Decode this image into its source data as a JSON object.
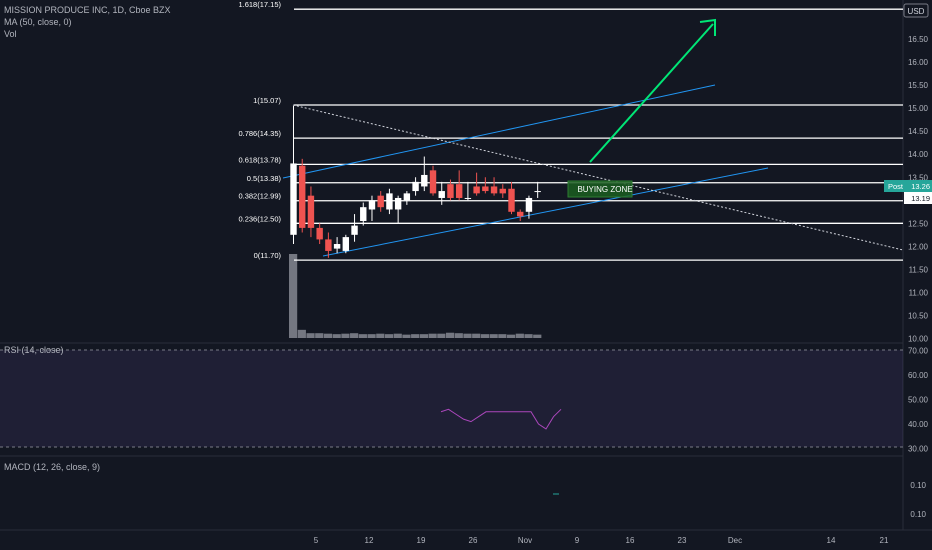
{
  "header": {
    "symbol_line": "MISSION PRODUCE INC, 1D, Cboe BZX",
    "ma_line": "MA (50, close, 0)",
    "vol_line": "Vol"
  },
  "price_axis": {
    "currency": "USD",
    "ticks": [
      "16.50",
      "16.00",
      "15.50",
      "15.00",
      "14.50",
      "14.00",
      "13.50",
      "13.00",
      "12.50",
      "12.00",
      "11.50",
      "11.00",
      "10.50",
      "10.00"
    ],
    "last_label_prefix": "Post",
    "last_price": "13.26",
    "close_price": "13.19"
  },
  "rsi_panel": {
    "title": "RSI (14, close)",
    "ticks": [
      "70.00",
      "60.00",
      "50.00",
      "40.00",
      "30.00"
    ]
  },
  "macd_panel": {
    "title": "MACD (12, 26, close, 9)",
    "ticks": [
      "0.10",
      "0.10"
    ]
  },
  "time_axis": {
    "labels": [
      "5",
      "12",
      "19",
      "26",
      "Nov",
      "9",
      "16",
      "23",
      "Dec",
      "14",
      "21"
    ]
  },
  "annotation": {
    "buying_zone": "BUYING ZONE"
  },
  "colors": {
    "background": "#131722",
    "up": "#ffffff",
    "down": "#ef5350",
    "fib": "#ffffff",
    "channel": "#2196f3",
    "arrow": "#00e676",
    "zone_fill": "#1b5e20",
    "rsi_band": "#7e57c2",
    "last_price_badge": "#26a69a"
  },
  "chart_data": {
    "type": "candlestick",
    "fib_levels": [
      {
        "ratio": 0,
        "price": 11.7,
        "label": "0(11.70)"
      },
      {
        "ratio": 0.236,
        "price": 12.5,
        "label": "0.236(12.50)"
      },
      {
        "ratio": 0.382,
        "price": 12.99,
        "label": "0.382(12.99)"
      },
      {
        "ratio": 0.5,
        "price": 13.38,
        "label": "0.5(13.38)"
      },
      {
        "ratio": 0.618,
        "price": 13.78,
        "label": "0.618(13.78)"
      },
      {
        "ratio": 0.786,
        "price": 14.35,
        "label": "0.786(14.35)"
      },
      {
        "ratio": 1,
        "price": 15.07,
        "label": "1(15.07)"
      },
      {
        "ratio": 1.618,
        "price": 17.15,
        "label": "1.618(17.15)"
      }
    ],
    "candles": [
      {
        "o": 12.25,
        "h": 15.05,
        "l": 12.05,
        "c": 13.8
      },
      {
        "o": 13.75,
        "h": 13.9,
        "l": 12.3,
        "c": 12.4
      },
      {
        "o": 13.1,
        "h": 13.3,
        "l": 12.2,
        "c": 12.4
      },
      {
        "o": 12.4,
        "h": 12.5,
        "l": 12.05,
        "c": 12.15
      },
      {
        "o": 12.15,
        "h": 12.3,
        "l": 11.75,
        "c": 11.9
      },
      {
        "o": 11.95,
        "h": 12.2,
        "l": 11.85,
        "c": 12.05
      },
      {
        "o": 11.9,
        "h": 12.25,
        "l": 11.85,
        "c": 12.2
      },
      {
        "o": 12.25,
        "h": 12.7,
        "l": 12.1,
        "c": 12.45
      },
      {
        "o": 12.55,
        "h": 12.95,
        "l": 12.45,
        "c": 12.85
      },
      {
        "o": 12.8,
        "h": 13.1,
        "l": 12.55,
        "c": 13.0
      },
      {
        "o": 13.1,
        "h": 13.2,
        "l": 12.75,
        "c": 12.85
      },
      {
        "o": 12.8,
        "h": 13.25,
        "l": 12.7,
        "c": 13.15
      },
      {
        "o": 12.8,
        "h": 13.1,
        "l": 12.5,
        "c": 13.05
      },
      {
        "o": 13.0,
        "h": 13.2,
        "l": 12.9,
        "c": 13.15
      },
      {
        "o": 13.2,
        "h": 13.5,
        "l": 13.1,
        "c": 13.4
      },
      {
        "o": 13.3,
        "h": 13.95,
        "l": 13.2,
        "c": 13.55
      },
      {
        "o": 13.65,
        "h": 13.75,
        "l": 13.1,
        "c": 13.15
      },
      {
        "o": 13.05,
        "h": 13.4,
        "l": 12.9,
        "c": 13.2
      },
      {
        "o": 13.35,
        "h": 13.45,
        "l": 13.0,
        "c": 13.05
      },
      {
        "o": 13.35,
        "h": 13.65,
        "l": 13.0,
        "c": 13.05
      },
      {
        "o": 13.05,
        "h": 13.4,
        "l": 13.0,
        "c": 13.05
      },
      {
        "o": 13.3,
        "h": 13.6,
        "l": 13.1,
        "c": 13.15
      },
      {
        "o": 13.3,
        "h": 13.5,
        "l": 13.15,
        "c": 13.2
      },
      {
        "o": 13.3,
        "h": 13.5,
        "l": 13.1,
        "c": 13.15
      },
      {
        "o": 13.25,
        "h": 13.35,
        "l": 13.05,
        "c": 13.15
      },
      {
        "o": 13.25,
        "h": 13.4,
        "l": 12.7,
        "c": 12.75
      },
      {
        "o": 12.75,
        "h": 12.8,
        "l": 12.55,
        "c": 12.65
      },
      {
        "o": 12.75,
        "h": 13.1,
        "l": 12.6,
        "c": 13.05
      },
      {
        "o": 13.2,
        "h": 13.4,
        "l": 13.05,
        "c": 13.2
      }
    ],
    "volume": [
      1.75,
      0.17,
      0.1,
      0.1,
      0.09,
      0.08,
      0.09,
      0.1,
      0.08,
      0.08,
      0.09,
      0.08,
      0.09,
      0.07,
      0.08,
      0.08,
      0.09,
      0.09,
      0.11,
      0.1,
      0.09,
      0.09,
      0.08,
      0.08,
      0.08,
      0.07,
      0.09,
      0.08,
      0.07
    ],
    "rsi": [
      {
        "i": 18,
        "v": 45
      },
      {
        "i": 19,
        "v": 46
      },
      {
        "i": 20,
        "v": 44
      },
      {
        "i": 21,
        "v": 42
      },
      {
        "i": 22,
        "v": 41
      },
      {
        "i": 23,
        "v": 43
      },
      {
        "i": 24,
        "v": 45
      },
      {
        "i": 26,
        "v": 45
      },
      {
        "i": 28,
        "v": 45
      },
      {
        "i": 30,
        "v": 45
      },
      {
        "i": 31,
        "v": 40
      },
      {
        "i": 32,
        "v": 38
      },
      {
        "i": 33,
        "v": 43
      },
      {
        "i": 34,
        "v": 46
      }
    ],
    "macd_signal_level": 0.0,
    "price_range": [
      9.9,
      17.35
    ],
    "rsi_range": [
      27,
      73
    ],
    "rsi_band": [
      30,
      70
    ]
  }
}
